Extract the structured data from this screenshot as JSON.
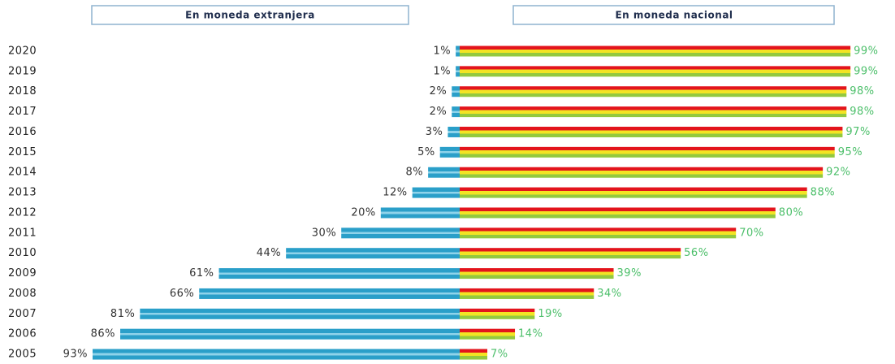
{
  "chart_data": {
    "type": "bar",
    "orientation": "horizontal",
    "layout": "diverging",
    "categories": [
      "2020",
      "2019",
      "2018",
      "2017",
      "2016",
      "2015",
      "2014",
      "2013",
      "2012",
      "2011",
      "2010",
      "2009",
      "2008",
      "2007",
      "2006",
      "2005"
    ],
    "series": [
      {
        "name": "En moneda extranjera",
        "side": "left",
        "colors": [
          "#2a9fc9",
          "#8fd3ea"
        ],
        "values": [
          1,
          1,
          2,
          2,
          3,
          5,
          8,
          12,
          20,
          30,
          44,
          61,
          66,
          81,
          86,
          93
        ],
        "value_labels": [
          "1%",
          "1%",
          "2%",
          "2%",
          "3%",
          "5%",
          "8%",
          "12%",
          "20%",
          "30%",
          "44%",
          "61%",
          "66%",
          "81%",
          "86%",
          "93%"
        ]
      },
      {
        "name": "En moneda nacional",
        "side": "right",
        "colors": [
          "#e3141c",
          "#f3e423",
          "#93c93e"
        ],
        "values": [
          99,
          99,
          98,
          98,
          97,
          95,
          92,
          88,
          80,
          70,
          56,
          39,
          34,
          19,
          14,
          7
        ],
        "value_labels": [
          "99%",
          "99%",
          "98%",
          "98%",
          "97%",
          "95%",
          "92%",
          "88%",
          "80%",
          "70%",
          "56%",
          "39%",
          "34%",
          "19%",
          "14%",
          "7%"
        ]
      }
    ]
  }
}
